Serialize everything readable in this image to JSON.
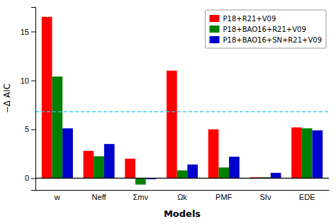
{
  "chart_data": {
    "type": "bar",
    "categories": [
      "w",
      "Neff",
      "Σmν",
      "Ωk",
      "PMF",
      "SIν",
      "EDE"
    ],
    "series": [
      {
        "name": "P18+R21+V09",
        "color": "#ff0000",
        "values": [
          16.5,
          2.8,
          2.0,
          11.0,
          5.0,
          0.1,
          5.2
        ]
      },
      {
        "name": "P18+BAO16+R21+V09",
        "color": "#008000",
        "values": [
          10.4,
          2.25,
          -0.65,
          0.8,
          1.1,
          0.1,
          5.1
        ]
      },
      {
        "name": "P18+BAO16+SN+R21+V09",
        "color": "#0000cc",
        "values": [
          5.1,
          3.5,
          -0.1,
          1.4,
          2.2,
          0.55,
          4.9
        ]
      }
    ],
    "reference_lines": [
      {
        "value": 6.8,
        "color": "#1ec8e0",
        "line_style": "dashed"
      }
    ],
    "xlabel": "Models",
    "ylabel": "−Δ AIC",
    "ylim": [
      -1.2,
      17.5
    ],
    "yticks": [
      0,
      5,
      10,
      15
    ],
    "legend": "upper right",
    "grid": false
  }
}
